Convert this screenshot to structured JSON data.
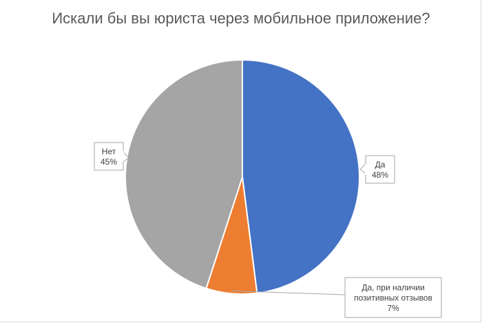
{
  "chart_data": {
    "type": "pie",
    "title": "Искали бы вы юриста через мобильное приложение?",
    "slices": [
      {
        "label": "Да",
        "value": 48,
        "value_label": "48%",
        "color": "#4472C4"
      },
      {
        "label": "Да, при наличии позитивных отзывов",
        "value": 7,
        "value_label": "7%",
        "color": "#ED7D31"
      },
      {
        "label": "Нет",
        "value": 45,
        "value_label": "45%",
        "color": "#A5A5A5"
      }
    ],
    "data_label_lines": [
      [
        "Да"
      ],
      [
        "Да, при наличии",
        "позитивных отзывов"
      ],
      [
        "Нет"
      ]
    ],
    "start_angle": "12 o'clock",
    "direction": "clockwise",
    "legend": "none"
  }
}
